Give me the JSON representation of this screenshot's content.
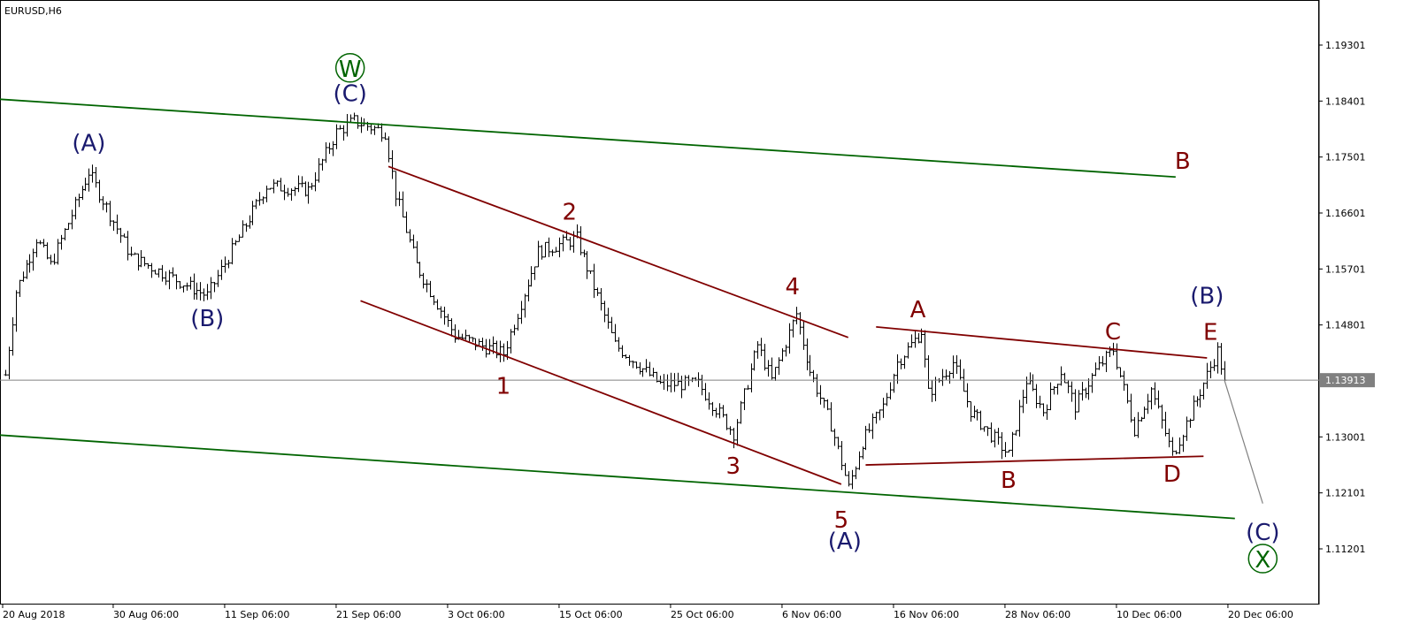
{
  "chart_data": {
    "type": "ohlc-bar",
    "title": "EURUSD,H6",
    "symbol": "EURUSD",
    "timeframe": "H6",
    "current_price": "1.13913",
    "ylim": [
      1.108,
      1.2025
    ],
    "y_ticks": [
      "1.19301",
      "1.18401",
      "1.17501",
      "1.16601",
      "1.15701",
      "1.14801",
      "1.13001",
      "1.12101",
      "1.11201"
    ],
    "x_ticks": [
      {
        "label": "20 Aug 2018",
        "date": "2018-08-20 00:00"
      },
      {
        "label": "30 Aug 06:00",
        "date": "2018-08-30 06:00"
      },
      {
        "label": "11 Sep 06:00",
        "date": "2018-09-11 06:00"
      },
      {
        "label": "21 Sep 06:00",
        "date": "2018-09-21 06:00"
      },
      {
        "label": "3 Oct 06:00",
        "date": "2018-10-03 06:00"
      },
      {
        "label": "15 Oct 06:00",
        "date": "2018-10-15 06:00"
      },
      {
        "label": "25 Oct 06:00",
        "date": "2018-10-25 06:00"
      },
      {
        "label": "6 Nov 06:00",
        "date": "2018-11-06 06:00"
      },
      {
        "label": "16 Nov 06:00",
        "date": "2018-11-16 06:00"
      },
      {
        "label": "28 Nov 06:00",
        "date": "2018-11-28 06:00"
      },
      {
        "label": "10 Dec 06:00",
        "date": "2018-12-10 06:00"
      },
      {
        "label": "20 Dec 06:00",
        "date": "2018-12-20 06:00"
      }
    ],
    "price_path": [
      [
        "2018-08-20 12:00",
        1.14
      ],
      [
        "2018-08-21 06:00",
        1.1534
      ],
      [
        "2018-08-22 18:00",
        1.1619
      ],
      [
        "2018-08-23 18:00",
        1.1576
      ],
      [
        "2018-08-28 12:00",
        1.1726
      ],
      [
        "2018-08-31 12:00",
        1.159
      ],
      [
        "2018-09-10 00:00",
        1.1527
      ],
      [
        "2018-09-14 06:00",
        1.1704
      ],
      [
        "2018-09-19 06:00",
        1.1697
      ],
      [
        "2018-09-21 06:00",
        1.179
      ],
      [
        "2018-09-24 12:00",
        1.1808
      ],
      [
        "2018-09-26 18:00",
        1.179
      ],
      [
        "2018-09-27 12:00",
        1.169
      ],
      [
        "2018-10-01 00:00",
        1.1576
      ],
      [
        "2018-10-03 18:00",
        1.1463
      ],
      [
        "2018-10-09 06:00",
        1.1434
      ],
      [
        "2018-10-11 18:00",
        1.1598
      ],
      [
        "2018-10-16 12:00",
        1.1619
      ],
      [
        "2018-10-19 06:00",
        1.1448
      ],
      [
        "2018-10-24 12:00",
        1.1385
      ],
      [
        "2018-10-29 06:00",
        1.1385
      ],
      [
        "2018-10-31 18:00",
        1.1306
      ],
      [
        "2018-11-02 12:00",
        1.1448
      ],
      [
        "2018-11-05 12:00",
        1.1391
      ],
      [
        "2018-11-07 06:00",
        1.1498
      ],
      [
        "2018-11-08 06:00",
        1.1406
      ],
      [
        "2018-11-09 18:00",
        1.132
      ],
      [
        "2018-11-13 00:00",
        1.1218
      ],
      [
        "2018-11-14 00:00",
        1.1292
      ],
      [
        "2018-11-15 12:00",
        1.1349
      ],
      [
        "2018-11-16 12:00",
        1.142
      ],
      [
        "2018-11-20 06:00",
        1.147
      ],
      [
        "2018-11-20 18:00",
        1.137
      ],
      [
        "2018-11-22 12:00",
        1.142
      ],
      [
        "2018-11-23 18:00",
        1.1342
      ],
      [
        "2018-11-28 12:00",
        1.1271
      ],
      [
        "2018-11-29 18:00",
        1.1391
      ],
      [
        "2018-12-03 00:00",
        1.1342
      ],
      [
        "2018-12-04 06:00",
        1.1406
      ],
      [
        "2018-12-05 06:00",
        1.1349
      ],
      [
        "2018-12-06 18:00",
        1.1406
      ],
      [
        "2018-12-10 00:00",
        1.1441
      ],
      [
        "2018-12-11 12:00",
        1.1313
      ],
      [
        "2018-12-12 18:00",
        1.1377
      ],
      [
        "2018-12-14 06:00",
        1.1271
      ],
      [
        "2018-12-17 12:00",
        1.1335
      ],
      [
        "2018-12-19 12:00",
        1.1438
      ],
      [
        "2018-12-20 00:00",
        1.13913
      ]
    ],
    "trend_lines": [
      {
        "name": "upper-channel",
        "color": "#006400",
        "from": [
          "2018-08-20 00:00",
          1.1843
        ],
        "to": [
          "2018-12-14 12:00",
          1.1718
        ]
      },
      {
        "name": "lower-channel",
        "color": "#006400",
        "from": [
          "2018-08-20 00:00",
          1.1303
        ],
        "to": [
          "2018-12-20 18:00",
          1.1169
        ]
      },
      {
        "name": "impulse-upper",
        "color": "#800000",
        "from": [
          "2018-09-27 00:00",
          1.1735
        ],
        "to": [
          "2018-11-13 00:00",
          1.146
        ]
      },
      {
        "name": "impulse-lower",
        "color": "#800000",
        "from": [
          "2018-09-25 00:00",
          1.1519
        ],
        "to": [
          "2018-11-12 12:00",
          1.1224
        ]
      },
      {
        "name": "triangle-upper",
        "color": "#800000",
        "from": [
          "2018-11-15 00:00",
          1.1477
        ],
        "to": [
          "2018-12-18 18:00",
          1.1427
        ]
      },
      {
        "name": "triangle-lower",
        "color": "#800000",
        "from": [
          "2018-11-14 06:00",
          1.1255
        ],
        "to": [
          "2018-12-18 12:00",
          1.1269
        ]
      },
      {
        "name": "projection",
        "color": "#808080",
        "from": [
          "2018-12-20 00:00",
          1.13913
        ],
        "to": [
          "2018-12-24 18:00",
          1.1193
        ]
      }
    ],
    "wave_labels": [
      {
        "text": "(A)",
        "color": "#1a1a6e",
        "date": "2018-08-28 12:00",
        "price": 1.1773
      },
      {
        "text": "(B)",
        "color": "#1a1a6e",
        "date": "2018-09-10 00:00",
        "price": 1.1491
      },
      {
        "text": "(C)",
        "color": "#1a1a6e",
        "date": "2018-09-24 06:00",
        "price": 1.1853
      },
      {
        "text": "W",
        "color": "#006400",
        "circled": true,
        "date": "2018-09-24 06:00",
        "price": 1.1892
      },
      {
        "text": "1",
        "color": "#800000",
        "date": "2018-10-09 06:00",
        "price": 1.1382
      },
      {
        "text": "2",
        "color": "#800000",
        "date": "2018-10-16 00:00",
        "price": 1.1662
      },
      {
        "text": "3",
        "color": "#800000",
        "date": "2018-10-31 18:00",
        "price": 1.1254
      },
      {
        "text": "4",
        "color": "#800000",
        "date": "2018-11-07 00:00",
        "price": 1.1542
      },
      {
        "text": "5",
        "color": "#800000",
        "date": "2018-11-12 12:00",
        "price": 1.1167
      },
      {
        "text": "(A)",
        "color": "#1a1a6e",
        "date": "2018-11-12 18:00",
        "price": 1.1133
      },
      {
        "text": "A",
        "color": "#800000",
        "date": "2018-11-20 00:00",
        "price": 1.1505
      },
      {
        "text": "B",
        "color": "#800000",
        "date": "2018-11-28 12:00",
        "price": 1.1231
      },
      {
        "text": "C",
        "color": "#800000",
        "date": "2018-12-10 00:00",
        "price": 1.147
      },
      {
        "text": "D",
        "color": "#800000",
        "date": "2018-12-14 06:00",
        "price": 1.1241
      },
      {
        "text": "E",
        "color": "#800000",
        "date": "2018-12-19 00:00",
        "price": 1.1469
      },
      {
        "text": "(B)",
        "color": "#1a1a6e",
        "date": "2018-12-18 18:00",
        "price": 1.1527
      },
      {
        "text": "B",
        "color": "#800000",
        "date": "2018-12-17 00:00",
        "price": 1.1744
      },
      {
        "text": "(C)",
        "color": "#1a1a6e",
        "date": "2018-12-24 18:00",
        "price": 1.1147
      },
      {
        "text": "X",
        "color": "#006400",
        "circled": true,
        "date": "2018-12-24 18:00",
        "price": 1.1103
      }
    ],
    "grid": false,
    "colors": {
      "bars": "#000000",
      "current_price_line": "#808080",
      "current_price_badge": "#808080"
    }
  }
}
